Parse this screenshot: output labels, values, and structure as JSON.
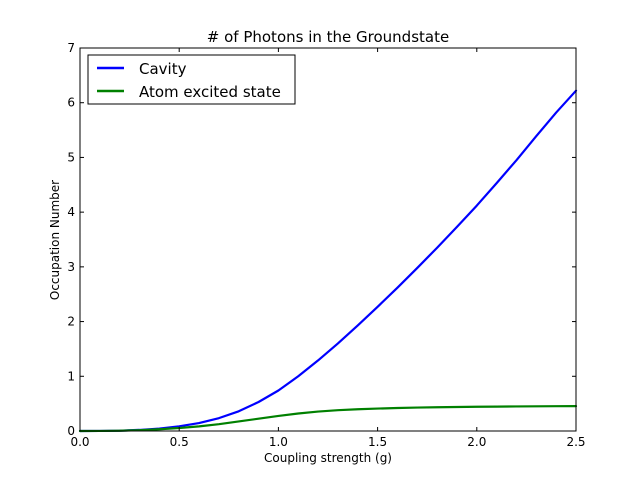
{
  "chart_data": {
    "type": "line",
    "title": "# of Photons in the Groundstate",
    "xlabel": "Coupling strength (g)",
    "ylabel": "Occupation Number",
    "xlim": [
      0.0,
      2.5
    ],
    "ylim": [
      0,
      7
    ],
    "xticks": [
      "0.0",
      "0.5",
      "1.0",
      "1.5",
      "2.0",
      "2.5"
    ],
    "yticks": [
      "0",
      "1",
      "2",
      "3",
      "4",
      "5",
      "6",
      "7"
    ],
    "grid": false,
    "legend_position": "top-left",
    "x": [
      0.0,
      0.1,
      0.2,
      0.3,
      0.4,
      0.5,
      0.6,
      0.7,
      0.8,
      0.9,
      1.0,
      1.1,
      1.2,
      1.3,
      1.4,
      1.5,
      1.6,
      1.7,
      1.8,
      1.9,
      2.0,
      2.1,
      2.2,
      2.3,
      2.4,
      2.5
    ],
    "series": [
      {
        "name": "Cavity",
        "color": "#0000ff",
        "values": [
          0.0,
          0.001,
          0.006,
          0.02,
          0.045,
          0.085,
          0.145,
          0.235,
          0.36,
          0.53,
          0.74,
          1.0,
          1.29,
          1.6,
          1.93,
          2.27,
          2.62,
          2.98,
          3.35,
          3.73,
          4.12,
          4.53,
          4.95,
          5.39,
          5.82,
          6.22
        ]
      },
      {
        "name": "Atom excited state",
        "color": "#008000",
        "values": [
          0.0,
          0.001,
          0.005,
          0.015,
          0.032,
          0.055,
          0.085,
          0.125,
          0.175,
          0.225,
          0.275,
          0.32,
          0.355,
          0.38,
          0.398,
          0.41,
          0.42,
          0.428,
          0.434,
          0.439,
          0.443,
          0.446,
          0.449,
          0.451,
          0.453,
          0.455
        ]
      }
    ]
  }
}
